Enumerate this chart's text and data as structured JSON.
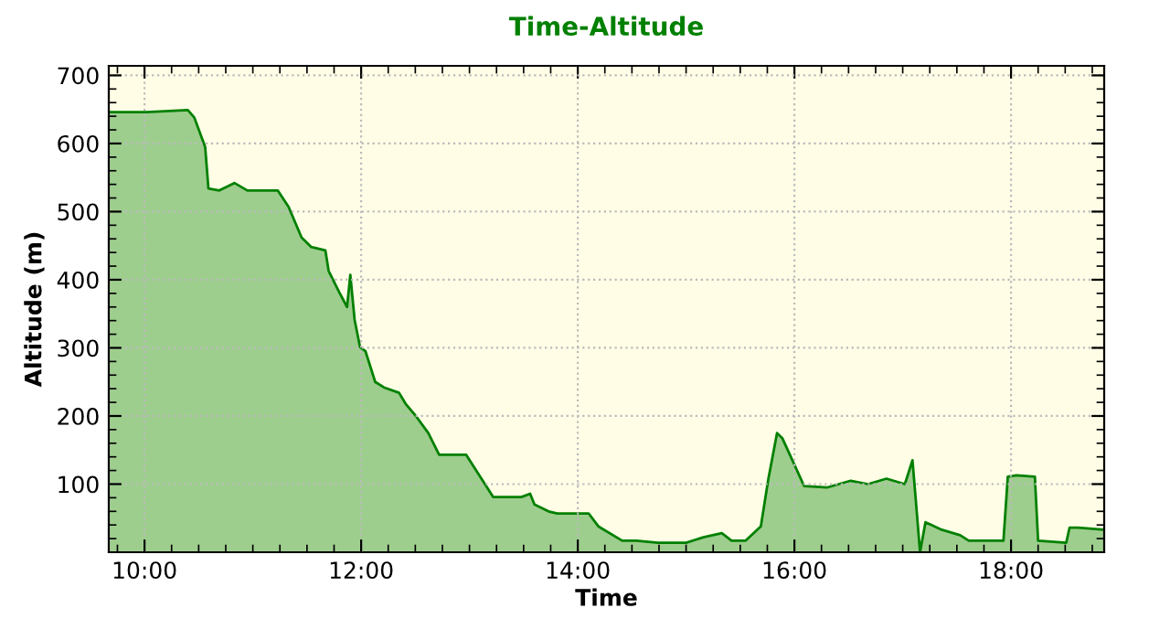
{
  "chart_data": {
    "type": "area",
    "title": "Time-Altitude",
    "xlabel": "Time",
    "ylabel": "Altitude (m)",
    "x": [
      9.68,
      10.02,
      10.4,
      10.46,
      10.56,
      10.59,
      10.69,
      10.83,
      10.95,
      11.23,
      11.33,
      11.45,
      11.54,
      11.67,
      11.7,
      11.8,
      11.87,
      11.9,
      11.94,
      11.99,
      12.04,
      12.13,
      12.21,
      12.35,
      12.41,
      12.51,
      12.62,
      12.72,
      12.97,
      13.09,
      13.22,
      13.48,
      13.56,
      13.6,
      13.73,
      13.81,
      14.1,
      14.19,
      14.41,
      14.54,
      14.74,
      15.0,
      15.16,
      15.33,
      15.42,
      15.55,
      15.69,
      15.76,
      15.84,
      15.89,
      16.09,
      16.3,
      16.52,
      16.68,
      16.85,
      17.02,
      17.09,
      17.12,
      17.16,
      17.21,
      17.36,
      17.53,
      17.61,
      17.93,
      17.97,
      18.05,
      18.22,
      18.25,
      18.51,
      18.54,
      18.62,
      18.86
    ],
    "series": [
      {
        "color": "#008000",
        "values": [
          646,
          646,
          649,
          638,
          595,
          534,
          531,
          542,
          531,
          531,
          507,
          462,
          448,
          443,
          413,
          381,
          360,
          407,
          341,
          301,
          295,
          250,
          242,
          234,
          218,
          199,
          175,
          143,
          143,
          113,
          81,
          81,
          86,
          70,
          60,
          57,
          57,
          38,
          17,
          17,
          14,
          14,
          22,
          28,
          17,
          17,
          38,
          108,
          175,
          167,
          97,
          95,
          105,
          100,
          108,
          100,
          135,
          78,
          0,
          44,
          33,
          25,
          17,
          17,
          111,
          113,
          111,
          17,
          14,
          36,
          36,
          33
        ]
      }
    ],
    "xlim": [
      9.67,
      18.86
    ],
    "ylim": [
      0,
      714
    ],
    "xticks": [
      {
        "value": 10,
        "label": "10:00"
      },
      {
        "value": 12,
        "label": "12:00"
      },
      {
        "value": 14,
        "label": "14:00"
      },
      {
        "value": 16,
        "label": "16:00"
      },
      {
        "value": 18,
        "label": "18:00"
      }
    ],
    "yticks": [
      100,
      200,
      300,
      400,
      500,
      600,
      700
    ],
    "grid": true
  }
}
